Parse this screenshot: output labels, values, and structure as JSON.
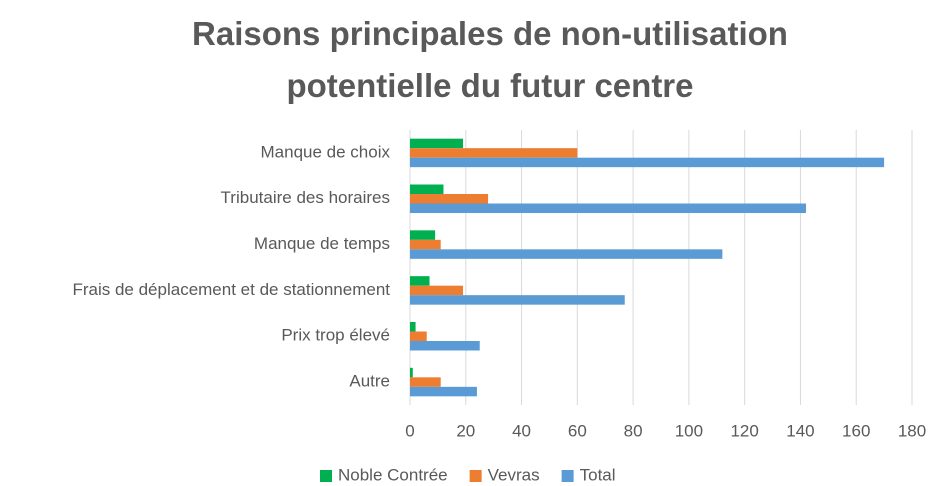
{
  "chart_data": {
    "type": "hbar",
    "title": "Raisons principales de non-utilisation potentielle du futur centre",
    "categories": [
      "Manque de choix",
      "Tributaire des horaires",
      "Manque de temps",
      "Frais de déplacement et de stationnement",
      "Prix trop élevé",
      "Autre"
    ],
    "series": [
      {
        "name": "Noble Contrée",
        "color": "#00b050",
        "values": [
          19,
          12,
          9,
          7,
          2,
          1
        ]
      },
      {
        "name": "Vevras",
        "color": "#ed7d31",
        "values": [
          60,
          28,
          11,
          19,
          6,
          11
        ]
      },
      {
        "name": "Total",
        "color": "#5b9bd5",
        "values": [
          170,
          142,
          112,
          77,
          25,
          24
        ]
      }
    ],
    "xlim": [
      0,
      180
    ],
    "xticks": [
      0,
      20,
      40,
      60,
      80,
      100,
      120,
      140,
      160,
      180
    ],
    "grid": true,
    "legend": "bottom"
  }
}
